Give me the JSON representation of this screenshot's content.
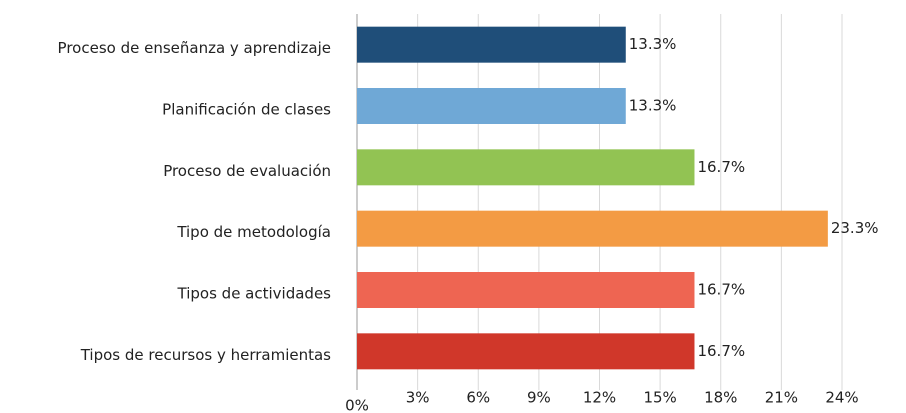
{
  "chart_data": {
    "type": "bar",
    "orientation": "horizontal",
    "categories": [
      "Proceso de enseñanza y aprendizaje",
      "Planificación de clases",
      "Proceso de evaluación",
      "Tipo de metodología",
      "Tipos de actividades",
      "Tipos de recursos y herramientas"
    ],
    "values": [
      13.3,
      13.3,
      16.7,
      23.3,
      16.7,
      16.7
    ],
    "value_labels": [
      "13.3%",
      "13.3%",
      "16.7%",
      "23.3%",
      "16.7%",
      "16.7%"
    ],
    "colors": [
      "#1f4e79",
      "#6fa8d6",
      "#92c353",
      "#f39b44",
      "#ee6552",
      "#d0372a"
    ],
    "xlim": [
      0,
      24
    ],
    "xticks": [
      {
        "value": 0,
        "label": "0%"
      },
      {
        "value": 3,
        "label": "3%"
      },
      {
        "value": 6,
        "label": "6%"
      },
      {
        "value": 9,
        "label": "9%"
      },
      {
        "value": 12,
        "label": "12%"
      },
      {
        "value": 15,
        "label": "15%"
      },
      {
        "value": 18,
        "label": "18%"
      },
      {
        "value": 21,
        "label": "21%"
      },
      {
        "value": 24,
        "label": "24%"
      }
    ],
    "grid": true
  }
}
